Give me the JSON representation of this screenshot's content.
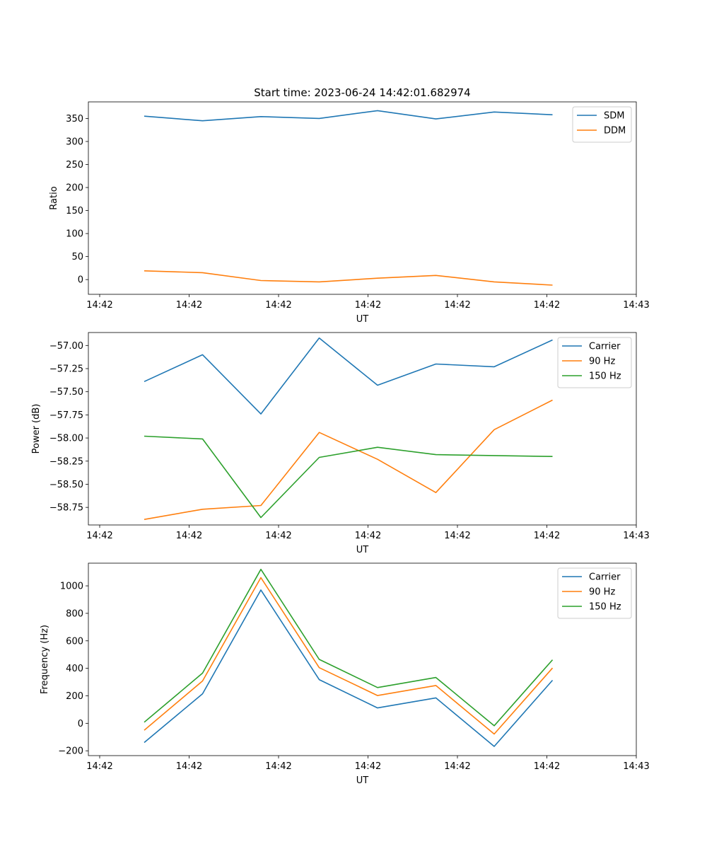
{
  "figure": {
    "title": "Start time: 2023-06-24 14:42:01.682974"
  },
  "chart_data": [
    {
      "type": "line",
      "xlabel": "UT",
      "ylabel": "Ratio",
      "x_ticks": [
        "14:42",
        "14:42",
        "14:42",
        "14:42",
        "14:42",
        "14:42",
        "14:43"
      ],
      "y_ticks": [
        0,
        50,
        100,
        150,
        200,
        250,
        300,
        350
      ],
      "ylim": [
        -32,
        386
      ],
      "legend_position": "top-right",
      "series": [
        {
          "name": "SDM",
          "color": "#1f77b4",
          "values": [
            355,
            345,
            354,
            350,
            367,
            349,
            364,
            358
          ]
        },
        {
          "name": "DDM",
          "color": "#ff7f0e",
          "values": [
            19,
            15,
            -2,
            -5,
            3,
            9,
            -5,
            -12
          ]
        }
      ]
    },
    {
      "type": "line",
      "xlabel": "UT",
      "ylabel": "Power (dB)",
      "x_ticks": [
        "14:42",
        "14:42",
        "14:42",
        "14:42",
        "14:42",
        "14:42",
        "14:43"
      ],
      "y_ticks": [
        -58.75,
        -58.5,
        -58.25,
        -58.0,
        -57.75,
        -57.5,
        -57.25,
        -57.0
      ],
      "ylim": [
        -58.94,
        -56.86
      ],
      "legend_position": "top-right",
      "series": [
        {
          "name": "Carrier",
          "color": "#1f77b4",
          "values": [
            -57.39,
            -57.1,
            -57.74,
            -56.92,
            -57.43,
            -57.2,
            -57.23,
            -56.94
          ]
        },
        {
          "name": "90 Hz",
          "color": "#ff7f0e",
          "values": [
            -58.88,
            -58.77,
            -58.73,
            -57.94,
            -58.23,
            -58.59,
            -57.91,
            -57.59
          ]
        },
        {
          "name": "150 Hz",
          "color": "#2ca02c",
          "values": [
            -57.98,
            -58.01,
            -58.86,
            -58.21,
            -58.1,
            -58.18,
            -58.19,
            -58.2
          ]
        }
      ]
    },
    {
      "type": "line",
      "xlabel": "UT",
      "ylabel": "Frequency (Hz)",
      "x_ticks": [
        "14:42",
        "14:42",
        "14:42",
        "14:42",
        "14:42",
        "14:42",
        "14:43"
      ],
      "y_ticks": [
        -200,
        0,
        200,
        400,
        600,
        800,
        1000
      ],
      "ylim": [
        -235,
        1165
      ],
      "legend_position": "top-right",
      "series": [
        {
          "name": "Carrier",
          "color": "#1f77b4",
          "values": [
            -140,
            215,
            970,
            318,
            112,
            185,
            -168,
            313
          ]
        },
        {
          "name": "90 Hz",
          "color": "#ff7f0e",
          "values": [
            -50,
            308,
            1060,
            405,
            202,
            275,
            -78,
            402
          ]
        },
        {
          "name": "150 Hz",
          "color": "#2ca02c",
          "values": [
            8,
            365,
            1120,
            465,
            260,
            333,
            -18,
            462
          ]
        }
      ]
    }
  ]
}
